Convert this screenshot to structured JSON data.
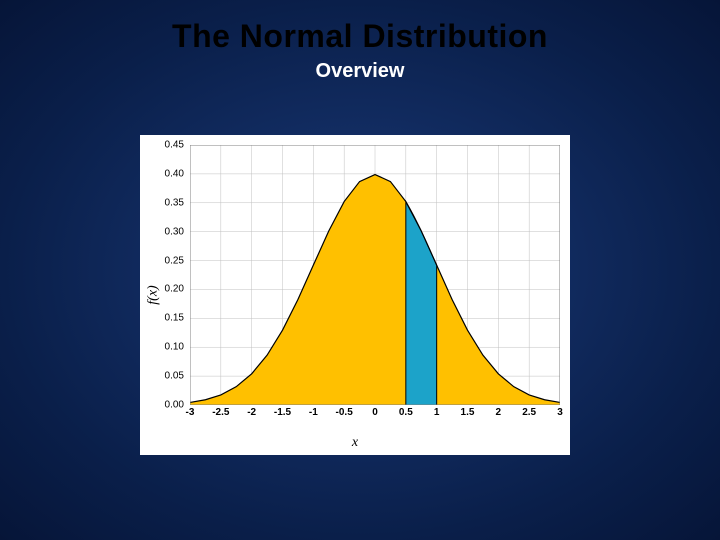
{
  "title": "The Normal Distribution",
  "subtitle": "Overview",
  "chart": {
    "type": "area",
    "background_color": "#ffffff",
    "plot_border_color": "#808080",
    "curve_fill_color": "#ffc000",
    "curve_stroke_color": "#000000",
    "highlight_fill_color": "#1ca3c9",
    "highlight_stroke_color": "#000000",
    "highlight_range": [
      0.5,
      1.0
    ],
    "xlabel": "x",
    "ylabel": "f(x)",
    "label_fontsize": 14,
    "tick_fontsize": 10,
    "xlim": [
      -3,
      3
    ],
    "ylim": [
      0.0,
      0.45
    ],
    "xtick_step": 0.5,
    "ytick_step": 0.05,
    "x_ticks": [
      "-3",
      "-2.5",
      "-2",
      "-1.5",
      "-1",
      "-0.5",
      "0",
      "0.5",
      "1",
      "1.5",
      "2",
      "2.5",
      "3"
    ],
    "y_ticks": [
      "0.00",
      "0.05",
      "0.10",
      "0.15",
      "0.20",
      "0.25",
      "0.30",
      "0.35",
      "0.40",
      "0.45"
    ],
    "grid_major_color": "#c0c0c0",
    "grid_on": true,
    "curve_points_x": [
      -3,
      -2.75,
      -2.5,
      -2.25,
      -2,
      -1.75,
      -1.5,
      -1.25,
      -1,
      -0.75,
      -0.5,
      -0.25,
      0,
      0.25,
      0.5,
      0.75,
      1,
      1.25,
      1.5,
      1.75,
      2,
      2.25,
      2.5,
      2.75,
      3
    ],
    "curve_points_y": [
      0.0044,
      0.0091,
      0.0175,
      0.0317,
      0.054,
      0.0863,
      0.1295,
      0.1826,
      0.242,
      0.3011,
      0.3521,
      0.3867,
      0.3989,
      0.3867,
      0.3521,
      0.3011,
      0.242,
      0.1826,
      0.1295,
      0.0863,
      0.054,
      0.0317,
      0.0175,
      0.0091,
      0.0044
    ]
  }
}
